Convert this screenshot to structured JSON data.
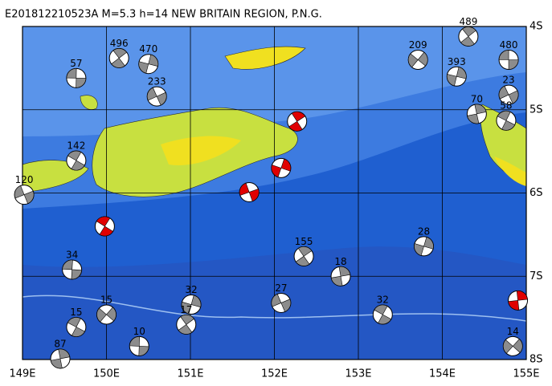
{
  "chart_data": {
    "type": "scatter",
    "title": "E201812210523A  M=5.3  h=14  NEW BRITAIN REGION, P.N.G.",
    "xlim": [
      149,
      155
    ],
    "ylim": [
      -8,
      -4
    ],
    "xticks": [
      {
        "value": 149,
        "label": "149E"
      },
      {
        "value": 150,
        "label": "150E"
      },
      {
        "value": 151,
        "label": "151E"
      },
      {
        "value": 152,
        "label": "152E"
      },
      {
        "value": 153,
        "label": "153E"
      },
      {
        "value": 154,
        "label": "154E"
      },
      {
        "value": 155,
        "label": "155E"
      }
    ],
    "yticks": [
      {
        "value": -4,
        "label": "4S"
      },
      {
        "value": -5,
        "label": "5S"
      },
      {
        "value": -6,
        "label": "6S"
      },
      {
        "value": -7,
        "label": "7S"
      },
      {
        "value": -8,
        "label": "8S"
      }
    ],
    "grid": true,
    "series": [
      {
        "color": "#8c8c8c",
        "x": [
          154.79,
          154.31,
          154.17,
          154.79,
          154.76,
          154.41,
          153.71,
          149.64,
          150.15,
          150.5,
          150.6,
          149.64,
          149.45,
          150.0,
          150.39,
          150.95,
          151.01,
          152.08,
          153.29,
          152.79,
          154.84,
          149.59,
          152.35,
          153.78,
          149.02,
          149.64
        ],
        "values": [
          -4.4,
          -4.12,
          -4.6,
          -4.82,
          -5.13,
          -5.05,
          -4.4,
          -4.62,
          -4.38,
          -4.45,
          -4.84,
          -7.61,
          -7.99,
          -7.46,
          -7.84,
          -7.58,
          -7.34,
          -7.32,
          -7.46,
          -7.0,
          -7.84,
          -6.92,
          -6.76,
          -6.64,
          -6.02,
          -5.61
        ],
        "labels": [
          "480",
          "489",
          "393",
          "23",
          "58",
          "70",
          "209",
          "57",
          "496",
          "470",
          "233",
          "15",
          "87",
          "15",
          "10",
          "17",
          "32",
          "27",
          "32",
          "18",
          "14",
          "34",
          "155",
          "28",
          "120",
          "142"
        ]
      },
      {
        "color": "#e00000",
        "x": [
          152.27,
          152.08,
          151.7,
          149.98,
          154.9
        ],
        "values": [
          -5.14,
          -5.7,
          -5.99,
          -6.4,
          -7.29
        ]
      }
    ]
  }
}
